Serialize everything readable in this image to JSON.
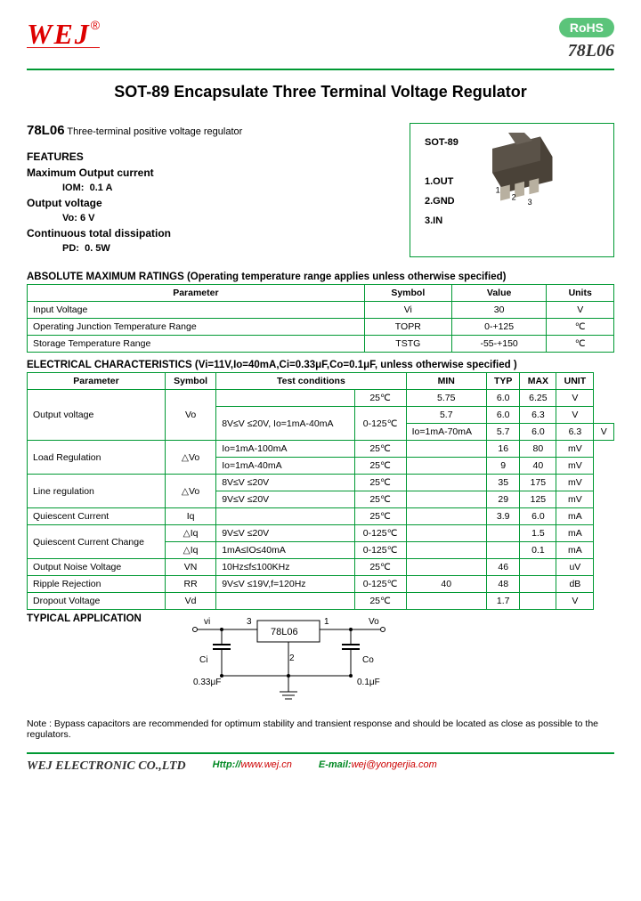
{
  "logo": "WEJ",
  "rohs": "RoHS",
  "part": "78L06",
  "title": "SOT-89 Encapsulate Three Terminal Voltage Regulator",
  "subtitle_part": "78L06",
  "subtitle_desc": "Three-terminal positive voltage regulator",
  "features_h": "FEATURES",
  "f1": "Maximum Output current",
  "f1_sym": "IOM:",
  "f1_val": "0.1 A",
  "f2": "Output voltage",
  "f2_sym": "Vo:",
  "f2_val": "6 V",
  "f3": "Continuous total dissipation",
  "f3_sym": "PD:",
  "f3_val": "0. 5W",
  "pkg_title": "SOT-89",
  "pkg_pins": {
    "p1": "1.OUT",
    "p2": "2.GND",
    "p3": "3.IN"
  },
  "t1_title": "ABSOLUTE MAXIMUM RATINGS (Operating temperature range applies unless otherwise specified)",
  "t1_headers": [
    "Parameter",
    "Symbol",
    "Value",
    "Units"
  ],
  "t1_rows": [
    [
      "Input Voltage",
      "Vi",
      "30",
      "V"
    ],
    [
      "Operating Junction Temperature Range",
      "TOPR",
      "0-+125",
      "℃"
    ],
    [
      "Storage Temperature Range",
      "TSTG",
      "-55-+150",
      "℃"
    ]
  ],
  "t2_title": "ELECTRICAL CHARACTERISTICS (Vi=11V,Io=40mA,Ci=0.33μF,Co=0.1μF, unless otherwise specified )",
  "t2_headers": [
    "Parameter",
    "Symbol",
    "Test conditions",
    "",
    "MIN",
    "TYP",
    "MAX",
    "UNIT"
  ],
  "t2_rows": [
    {
      "p": "Output voltage",
      "pr": 3,
      "s": "Vo",
      "sr": 3,
      "tc": "",
      "td": "25℃",
      "min": "5.75",
      "typ": "6.0",
      "max": "6.25",
      "u": "V"
    },
    {
      "tc": "8V≤V ≤20V, Io=1mA-40mA",
      "tcr": 2,
      "td": "0-125℃",
      "tdr": 2,
      "min": "5.7",
      "typ": "6.0",
      "max": "6.3",
      "u": "V"
    },
    {
      "tc2": "Io=1mA-70mA",
      "min": "5.7",
      "typ": "6.0",
      "max": "6.3",
      "u": "V"
    },
    {
      "p": "Load Regulation",
      "pr": 2,
      "s": "△Vo",
      "sr": 2,
      "tc": "Io=1mA-100mA",
      "td": "25℃",
      "min": "",
      "typ": "16",
      "max": "80",
      "u": "mV"
    },
    {
      "tc": "Io=1mA-40mA",
      "td": "25℃",
      "min": "",
      "typ": "9",
      "max": "40",
      "u": "mV"
    },
    {
      "p": "Line regulation",
      "pr": 2,
      "s": "△Vo",
      "sr": 2,
      "tc": "8V≤V ≤20V",
      "td": "25℃",
      "min": "",
      "typ": "35",
      "max": "175",
      "u": "mV"
    },
    {
      "tc": "9V≤V ≤20V",
      "td": "25℃",
      "min": "",
      "typ": "29",
      "max": "125",
      "u": "mV"
    },
    {
      "p": "Quiescent Current",
      "s": "Iq",
      "tc": "",
      "td": "25℃",
      "min": "",
      "typ": "3.9",
      "max": "6.0",
      "u": "mA"
    },
    {
      "p": "Quiescent Current Change",
      "pr": 2,
      "s": "△Iq",
      "tc": "9V≤V ≤20V",
      "td": "0-125℃",
      "min": "",
      "typ": "",
      "max": "1.5",
      "u": "mA"
    },
    {
      "s": "△Iq",
      "tc": "1mA≤IO≤40mA",
      "td": "0-125℃",
      "min": "",
      "typ": "",
      "max": "0.1",
      "u": "mA"
    },
    {
      "p": "Output Noise Voltage",
      "s": "VN",
      "tc": "10Hz≤f≤100KHz",
      "td": "25℃",
      "min": "",
      "typ": "46",
      "max": "",
      "u": "uV"
    },
    {
      "p": "Ripple Rejection",
      "s": "RR",
      "tc": "9V≤V ≤19V,f=120Hz",
      "td": "0-125℃",
      "min": "40",
      "typ": "48",
      "max": "",
      "u": "dB"
    },
    {
      "p": "Dropout Voltage",
      "s": "Vd",
      "tc": "",
      "td": "25℃",
      "min": "",
      "typ": "1.7",
      "max": "",
      "u": "V"
    }
  ],
  "app_h": "TYPICAL APPLICATION",
  "app": {
    "vi": "vi",
    "vo": "Vo",
    "chip": "78L06",
    "ci": "Ci",
    "civ": "0.33μF",
    "co": "Co",
    "cov": "0.1μF",
    "p1": "1",
    "p2": "2",
    "p3": "3"
  },
  "note": "Note : Bypass capacitors are recommended for optimum stability and transient response and should be located as close as possible to the regulators.",
  "footer": {
    "co": "WEJ ELECTRONIC CO.,LTD",
    "http": "Http://",
    "url": "www.wej.cn",
    "em": "E-mail:",
    "email": "wej@yongerjia.com"
  }
}
